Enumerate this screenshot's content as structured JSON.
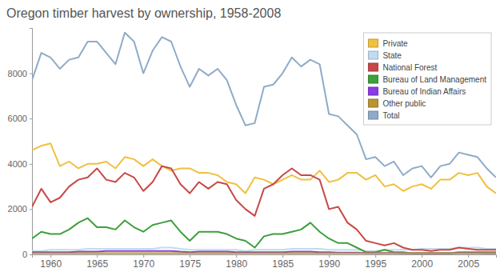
{
  "chart_data": {
    "type": "line",
    "title": "Oregon timber harvest by ownership, 1958-2008",
    "x": [
      1958,
      1959,
      1960,
      1961,
      1962,
      1963,
      1964,
      1965,
      1966,
      1967,
      1968,
      1969,
      1970,
      1971,
      1972,
      1973,
      1974,
      1975,
      1976,
      1977,
      1978,
      1979,
      1980,
      1981,
      1982,
      1983,
      1984,
      1985,
      1986,
      1987,
      1988,
      1989,
      1990,
      1991,
      1992,
      1993,
      1994,
      1995,
      1996,
      1997,
      1998,
      1999,
      2000,
      2001,
      2002,
      2003,
      2004,
      2005,
      2006,
      2007,
      2008
    ],
    "xlim": [
      1958,
      2008
    ],
    "xticks": [
      1960,
      1965,
      1970,
      1975,
      1980,
      1985,
      1990,
      1995,
      2000,
      2005
    ],
    "ylim": [
      0,
      10000
    ],
    "yticks": [
      0,
      2000,
      4000,
      6000,
      8000
    ],
    "grid": false,
    "legend": "upper right",
    "series": [
      {
        "name": "Private",
        "color": "#f0c040",
        "values": [
          4600,
          4800,
          4900,
          3900,
          4100,
          3800,
          4000,
          4000,
          4100,
          3800,
          4300,
          4200,
          3900,
          4200,
          3900,
          3700,
          3800,
          3800,
          3600,
          3600,
          3500,
          3200,
          3100,
          2700,
          3400,
          3300,
          3100,
          3300,
          3500,
          3300,
          3300,
          3700,
          3200,
          3300,
          3600,
          3600,
          3300,
          3500,
          3000,
          3100,
          2800,
          3000,
          3100,
          2900,
          3300,
          3300,
          3600,
          3500,
          3600,
          3000,
          2700
        ]
      },
      {
        "name": "State",
        "color": "#c0dcf0",
        "values": [
          150,
          150,
          200,
          200,
          200,
          200,
          250,
          250,
          250,
          250,
          250,
          250,
          250,
          250,
          300,
          300,
          250,
          200,
          200,
          200,
          200,
          200,
          200,
          150,
          200,
          200,
          200,
          200,
          250,
          250,
          250,
          250,
          200,
          200,
          200,
          200,
          150,
          150,
          200,
          200,
          200,
          200,
          250,
          250,
          250,
          250,
          300,
          300,
          300,
          250,
          250
        ]
      },
      {
        "name": "National Forest",
        "color": "#c84848",
        "values": [
          2100,
          2900,
          2300,
          2500,
          3000,
          3300,
          3400,
          3800,
          3300,
          3200,
          3600,
          3400,
          2800,
          3200,
          3900,
          3800,
          3100,
          2700,
          3200,
          2900,
          3200,
          3100,
          2400,
          2000,
          1700,
          2900,
          3100,
          3500,
          3800,
          3500,
          3500,
          3300,
          2000,
          2100,
          1400,
          1100,
          600,
          500,
          400,
          500,
          300,
          200,
          200,
          150,
          200,
          200,
          300,
          250,
          200,
          200,
          200
        ]
      },
      {
        "name": "Bureau of Land Management",
        "color": "#3ca03c",
        "values": [
          700,
          1000,
          900,
          900,
          1100,
          1400,
          1600,
          1200,
          1200,
          1100,
          1500,
          1200,
          1000,
          1300,
          1400,
          1500,
          1000,
          600,
          1000,
          1000,
          1000,
          900,
          700,
          600,
          300,
          800,
          900,
          900,
          1000,
          1100,
          1400,
          1000,
          700,
          500,
          500,
          300,
          100,
          100,
          200,
          100,
          100,
          50,
          50,
          50,
          50,
          50,
          100,
          100,
          100,
          100,
          100
        ]
      },
      {
        "name": "Bureau of Indian Affairs",
        "color": "#8a3ce6",
        "values": [
          100,
          100,
          100,
          100,
          100,
          120,
          120,
          120,
          150,
          150,
          150,
          150,
          150,
          150,
          150,
          150,
          120,
          100,
          120,
          120,
          120,
          120,
          100,
          100,
          100,
          100,
          100,
          100,
          120,
          120,
          120,
          100,
          100,
          80,
          80,
          80,
          60,
          60,
          60,
          60,
          50,
          50,
          50,
          50,
          50,
          50,
          60,
          60,
          60,
          50,
          50
        ]
      },
      {
        "name": "Other public",
        "color": "#b8952f",
        "values": [
          50,
          50,
          50,
          50,
          50,
          50,
          50,
          50,
          50,
          50,
          50,
          50,
          50,
          50,
          50,
          50,
          50,
          50,
          50,
          50,
          50,
          50,
          50,
          50,
          50,
          50,
          50,
          50,
          50,
          50,
          50,
          50,
          50,
          50,
          50,
          50,
          50,
          50,
          50,
          50,
          50,
          50,
          50,
          50,
          50,
          50,
          50,
          50,
          50,
          50,
          50
        ]
      },
      {
        "name": "Total",
        "color": "#8fabc9",
        "values": [
          7700,
          8900,
          8700,
          8200,
          8600,
          8700,
          9400,
          9400,
          8900,
          8400,
          9800,
          9400,
          8000,
          9000,
          9600,
          9400,
          8300,
          7400,
          8200,
          7900,
          8200,
          7700,
          6600,
          5700,
          5800,
          7400,
          7500,
          8000,
          8700,
          8300,
          8600,
          8400,
          6200,
          6100,
          5700,
          5300,
          4200,
          4300,
          3900,
          4100,
          3500,
          3800,
          3900,
          3400,
          3900,
          4000,
          4500,
          4400,
          4300,
          3800,
          3400
        ]
      }
    ]
  }
}
